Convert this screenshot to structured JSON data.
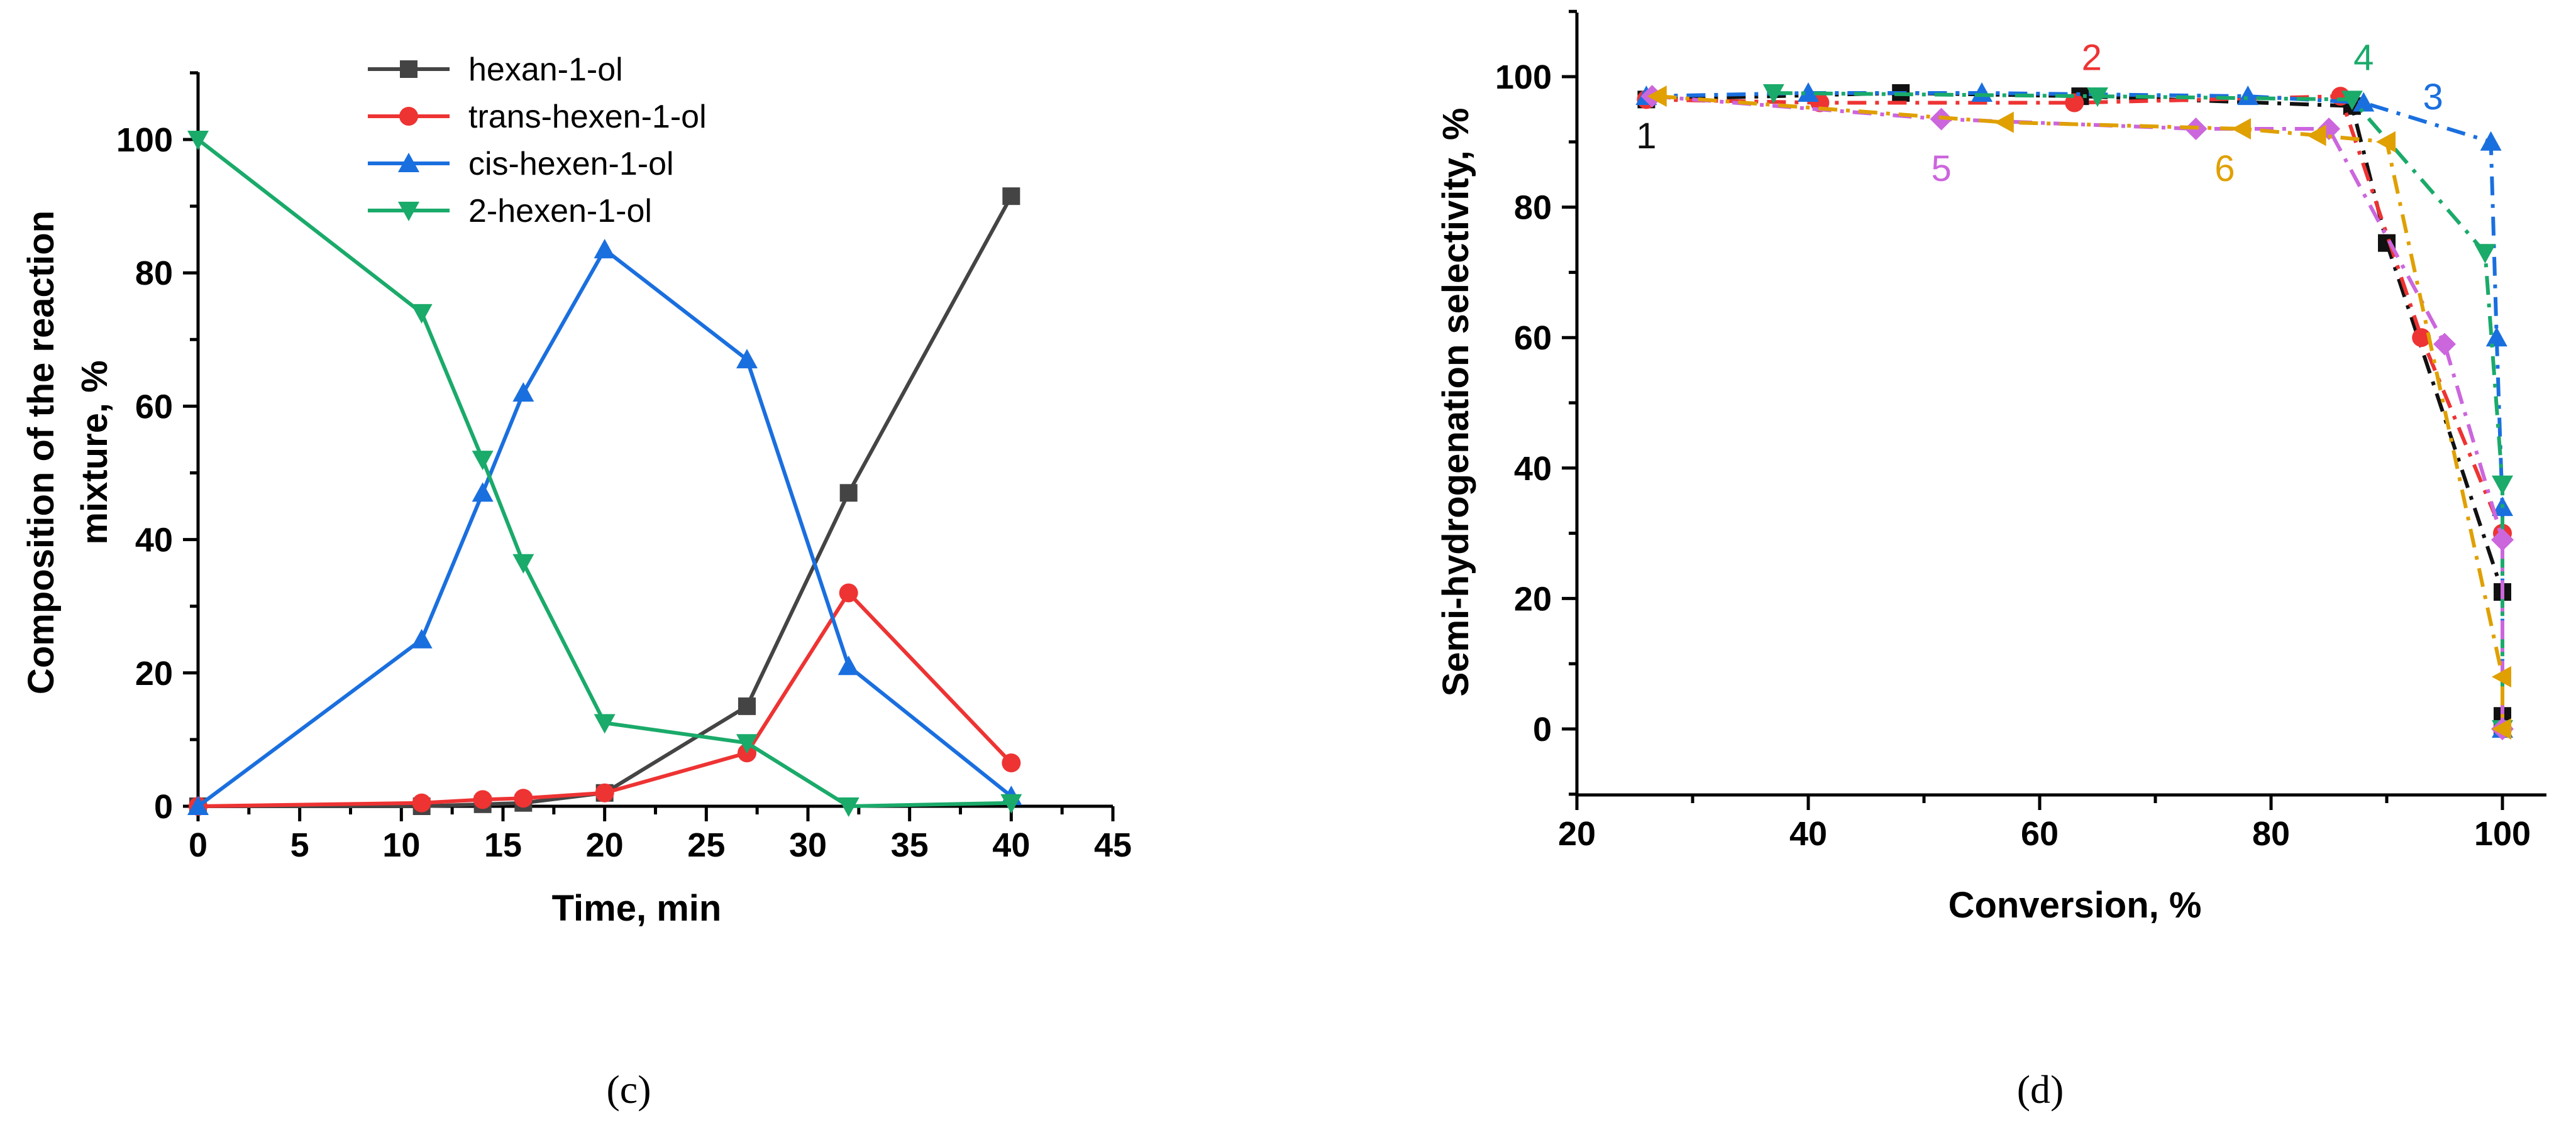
{
  "chart_data": [
    {
      "type": "line",
      "panel_label": "(c)",
      "xlabel": "Time, min",
      "ylabel_lines": [
        "Composition of the reaction",
        "mixture, %"
      ],
      "xlim": [
        0,
        45
      ],
      "ylim": [
        0,
        110
      ],
      "x_ticks": [
        0,
        5,
        10,
        15,
        20,
        25,
        30,
        35,
        40,
        45
      ],
      "y_ticks": [
        0,
        20,
        40,
        60,
        80,
        100
      ],
      "grid": false,
      "legend_position": "top-center",
      "series": [
        {
          "name": "hexan-1-ol",
          "color": "#444444",
          "marker": "square",
          "x": [
            0,
            11,
            14,
            16,
            20,
            27,
            32,
            40
          ],
          "y": [
            0,
            0,
            0.3,
            0.5,
            2,
            15,
            47,
            91.5
          ]
        },
        {
          "name": "trans-hexen-1-ol",
          "color": "#ee3333",
          "marker": "circle",
          "x": [
            0,
            11,
            14,
            16,
            20,
            27,
            32,
            40
          ],
          "y": [
            0,
            0.5,
            1,
            1.2,
            2,
            8,
            32,
            6.5
          ]
        },
        {
          "name": "cis-hexen-1-ol",
          "color": "#1a6fdf",
          "marker": "triangle-up",
          "x": [
            0,
            11,
            14,
            16,
            20,
            27,
            32,
            40
          ],
          "y": [
            0,
            25,
            47,
            62,
            83.5,
            67,
            21,
            1.5
          ]
        },
        {
          "name": "2-hexen-1-ol",
          "color": "#1aaa6a",
          "marker": "triangle-down",
          "x": [
            0,
            11,
            14,
            16,
            20,
            27,
            32,
            40
          ],
          "y": [
            100,
            74,
            52,
            36.5,
            12.5,
            9.5,
            0,
            0.5
          ]
        }
      ]
    },
    {
      "type": "line",
      "panel_label": "(d)",
      "xlabel": "Conversion, %",
      "ylabel": "Semi-hydrogenation selectivity, %",
      "xlim": [
        20,
        102
      ],
      "ylim": [
        -10,
        110
      ],
      "x_ticks": [
        20,
        40,
        60,
        80,
        100
      ],
      "y_ticks": [
        0,
        20,
        40,
        60,
        80,
        100
      ],
      "grid": false,
      "series": [
        {
          "name": "1",
          "color": "#111111",
          "marker": "square",
          "x": [
            26,
            48,
            63.5,
            87,
            90,
            100,
            100,
            100
          ],
          "y": [
            96.5,
            97.5,
            97,
            95.5,
            74.5,
            21,
            2,
            0
          ]
        },
        {
          "name": "2",
          "color": "#ee3333",
          "marker": "circle",
          "x": [
            26,
            41,
            63,
            86,
            93,
            100,
            100
          ],
          "y": [
            96.5,
            96,
            96,
            97,
            60,
            30,
            0
          ]
        },
        {
          "name": "3",
          "color": "#1a6fdf",
          "marker": "triangle-up",
          "x": [
            26,
            40,
            55,
            78,
            88,
            99,
            99.5,
            100,
            100
          ],
          "y": [
            97,
            97.5,
            97.5,
            97,
            96,
            90,
            60,
            34,
            0
          ]
        },
        {
          "name": "4",
          "color": "#1aaa6a",
          "marker": "triangle-down",
          "x": [
            37,
            65,
            87,
            98.5,
            100,
            100
          ],
          "y": [
            97.5,
            97,
            96.5,
            73,
            37.5,
            0
          ]
        },
        {
          "name": "5",
          "color": "#cc66dd",
          "marker": "diamond",
          "x": [
            26.5,
            51.5,
            73.5,
            85,
            95,
            100,
            100
          ],
          "y": [
            97,
            93.5,
            92,
            92,
            59,
            29,
            0
          ]
        },
        {
          "name": "6",
          "color": "#e0a000",
          "marker": "triangle-left",
          "x": [
            27,
            57,
            77.5,
            84,
            90,
            100,
            100
          ],
          "y": [
            97,
            93,
            92,
            91,
            90,
            8,
            0
          ]
        }
      ],
      "curve_labels": [
        {
          "text": "1",
          "x": 26,
          "y": 89,
          "color": "#111111"
        },
        {
          "text": "2",
          "x": 64.5,
          "y": 101,
          "color": "#ee3333"
        },
        {
          "text": "3",
          "x": 94,
          "y": 95,
          "color": "#1a6fdf"
        },
        {
          "text": "4",
          "x": 88,
          "y": 101,
          "color": "#1aaa6a"
        },
        {
          "text": "5",
          "x": 51.5,
          "y": 84,
          "color": "#cc66dd"
        },
        {
          "text": "6",
          "x": 76,
          "y": 84,
          "color": "#e0a000"
        }
      ]
    }
  ]
}
